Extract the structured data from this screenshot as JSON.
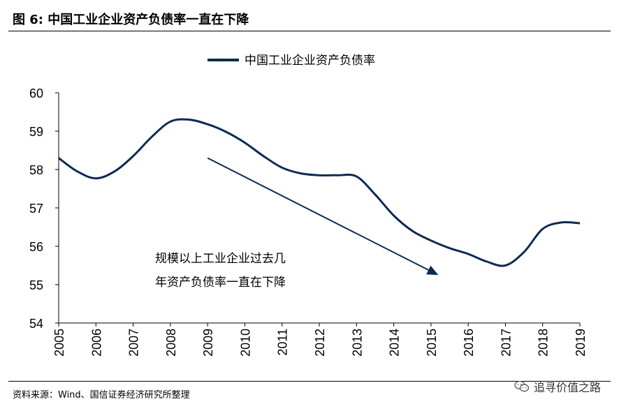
{
  "header": {
    "figure_title": "图 6:  中国工业企业资产负债率一直在下降"
  },
  "footer": {
    "source": "资料来源：Wind、国信证券经济研究所整理",
    "watermark": "追寻价值之路",
    "watermark_icon": "wechat-icon"
  },
  "colors": {
    "series": "#0d2a52",
    "axis": "#000000"
  },
  "chart_data": {
    "type": "line",
    "title": "",
    "xlabel": "",
    "ylabel": "",
    "ylim": [
      54,
      60
    ],
    "yticks": [
      "54",
      "55",
      "56",
      "57",
      "58",
      "59",
      "60"
    ],
    "xticks": [
      "2005",
      "2006",
      "2007",
      "2008",
      "2009",
      "2010",
      "2011",
      "2012",
      "2013",
      "2014",
      "2015",
      "2016",
      "2017",
      "2018",
      "2019"
    ],
    "grid": false,
    "legend_position": "top-center",
    "series": [
      {
        "name": "中国工业企业资产负债率",
        "x": [
          2005,
          2005.5,
          2006,
          2006.5,
          2007,
          2007.5,
          2008,
          2008.5,
          2009,
          2009.5,
          2010,
          2010.5,
          2011,
          2011.5,
          2012,
          2012.5,
          2013,
          2013.5,
          2014,
          2014.5,
          2015,
          2015.5,
          2016,
          2016.5,
          2017,
          2017.5,
          2018,
          2018.5,
          2019
        ],
        "y": [
          58.3,
          57.95,
          57.77,
          57.95,
          58.35,
          58.85,
          59.25,
          59.3,
          59.18,
          58.98,
          58.7,
          58.35,
          58.05,
          57.9,
          57.85,
          57.85,
          57.82,
          57.35,
          56.8,
          56.4,
          56.15,
          55.95,
          55.8,
          55.6,
          55.5,
          55.85,
          56.45,
          56.62,
          56.6
        ]
      }
    ],
    "annotations": [
      {
        "text_lines": [
          "规模以上工业企业过去几",
          "年资产负债率一直在下降"
        ],
        "arrow_from": [
          2009.0,
          58.3
        ],
        "arrow_to": [
          2015.2,
          55.25
        ]
      }
    ]
  }
}
